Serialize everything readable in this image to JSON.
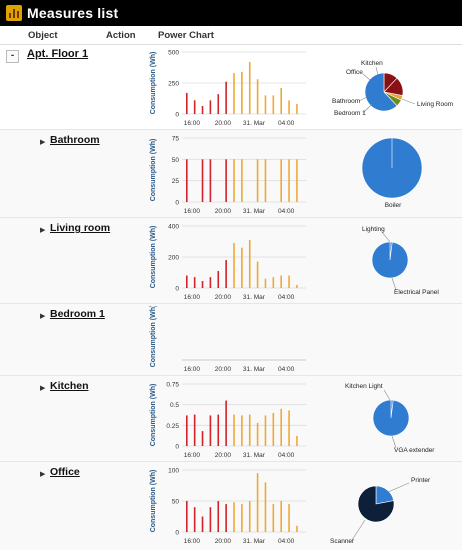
{
  "app": {
    "title": "Measures list"
  },
  "columns": {
    "object": "Object",
    "action": "Action",
    "power_chart": "Power Chart"
  },
  "colors": {
    "bar_night": "#d0232a",
    "bar_day": "#f0a832",
    "pie_main": "#2f7cd1",
    "pie_dark": "#0e1f3a",
    "pie_red": "#8a1016",
    "pie_green": "#6e8b1f",
    "pie_orange": "#e5a43b"
  },
  "common": {
    "ylabel": "Consumption (Wh)",
    "x_ticks": [
      "16:00",
      "20:00",
      "31. Mar",
      "04:00"
    ]
  },
  "sections": [
    {
      "name": "Apt. Floor 1",
      "toggle": "-",
      "chart_data": {
        "type": "bar",
        "ylabel": "Consumption (Wh)",
        "y_ticks": [
          "500",
          "250",
          "0"
        ],
        "ylim": [
          0,
          500
        ],
        "x_ticks": [
          "16:00",
          "20:00",
          "31. Mar",
          "04:00"
        ],
        "values": [
          170,
          110,
          65,
          110,
          160,
          260,
          330,
          340,
          420,
          280,
          150,
          150,
          210,
          110,
          80
        ],
        "colors": [
          "night",
          "night",
          "night",
          "night",
          "night",
          "night",
          "day",
          "day",
          "day",
          "day",
          "day",
          "day",
          "day",
          "day",
          "day"
        ]
      },
      "pie": {
        "labels": [
          "Kitchen",
          "Office",
          "Bathroom",
          "Bedroom 1",
          "Living Room"
        ],
        "values": [
          12,
          16,
          4,
          6,
          62
        ]
      }
    },
    {
      "name": "Bathroom",
      "toggle": "▶",
      "chart_data": {
        "type": "bar",
        "ylabel": "Consumption (Wh)",
        "y_ticks": [
          "75",
          "50",
          "25",
          "0"
        ],
        "ylim": [
          0,
          75
        ],
        "x_ticks": [
          "16:00",
          "20:00",
          "31. Mar",
          "04:00"
        ],
        "values": [
          50,
          0,
          50,
          50,
          0,
          50,
          50,
          50,
          0,
          50,
          50,
          0,
          50,
          50,
          50
        ],
        "colors": [
          "night",
          "night",
          "night",
          "night",
          "night",
          "night",
          "day",
          "day",
          "day",
          "day",
          "day",
          "day",
          "day",
          "day",
          "day"
        ]
      },
      "pie": {
        "labels": [
          "Boiler"
        ],
        "values": [
          100
        ]
      }
    },
    {
      "name": "Living room",
      "toggle": "▶",
      "chart_data": {
        "type": "bar",
        "ylabel": "Consumption (Wh)",
        "y_ticks": [
          "400",
          "200",
          "0"
        ],
        "ylim": [
          0,
          400
        ],
        "x_ticks": [
          "16:00",
          "20:00",
          "31. Mar",
          "04:00"
        ],
        "values": [
          80,
          70,
          45,
          70,
          110,
          180,
          290,
          260,
          310,
          170,
          60,
          70,
          80,
          80,
          20
        ],
        "colors": [
          "night",
          "night",
          "night",
          "night",
          "night",
          "night",
          "day",
          "day",
          "day",
          "day",
          "day",
          "day",
          "day",
          "day",
          "day"
        ]
      },
      "pie": {
        "labels": [
          "Lighting",
          "Electrical Panel"
        ],
        "values": [
          2,
          98
        ]
      }
    },
    {
      "name": "Bedroom 1",
      "toggle": "▶",
      "chart_data": {
        "type": "bar",
        "ylabel": "Consumption (Wh)",
        "y_ticks": [],
        "x_ticks": [
          "16:00",
          "20:00",
          "31. Mar",
          "04:00"
        ],
        "values": [],
        "colors": []
      },
      "pie": null
    },
    {
      "name": "Kitchen",
      "toggle": "▶",
      "chart_data": {
        "type": "bar",
        "ylabel": "Consumption (Wh)",
        "y_ticks": [
          "0.75",
          "0.5",
          "0.25",
          "0"
        ],
        "ylim": [
          0,
          0.75
        ],
        "x_ticks": [
          "16:00",
          "20:00",
          "31. Mar",
          "04:00"
        ],
        "values": [
          0.37,
          0.38,
          0.18,
          0.37,
          0.38,
          0.55,
          0.38,
          0.37,
          0.38,
          0.28,
          0.37,
          0.4,
          0.45,
          0.43,
          0.12
        ],
        "colors": [
          "night",
          "night",
          "night",
          "night",
          "night",
          "night",
          "day",
          "day",
          "day",
          "day",
          "day",
          "day",
          "day",
          "day",
          "day"
        ]
      },
      "pie": {
        "labels": [
          "Kitchen Light",
          "VGA extender"
        ],
        "values": [
          2,
          98
        ]
      }
    },
    {
      "name": "Office",
      "toggle": "▶",
      "chart_data": {
        "type": "bar",
        "ylabel": "Consumption (Wh)",
        "y_ticks": [
          "100",
          "50",
          "0"
        ],
        "ylim": [
          0,
          100
        ],
        "x_ticks": [
          "16:00",
          "20:00",
          "31. Mar",
          "04:00"
        ],
        "values": [
          50,
          40,
          25,
          40,
          50,
          45,
          48,
          45,
          50,
          95,
          80,
          45,
          50,
          45,
          10
        ],
        "colors": [
          "night",
          "night",
          "night",
          "night",
          "night",
          "night",
          "day",
          "day",
          "day",
          "day",
          "day",
          "day",
          "day",
          "day",
          "day"
        ]
      },
      "pie": {
        "labels": [
          "Printer",
          "Scanner"
        ],
        "values": [
          22,
          78
        ]
      }
    }
  ]
}
